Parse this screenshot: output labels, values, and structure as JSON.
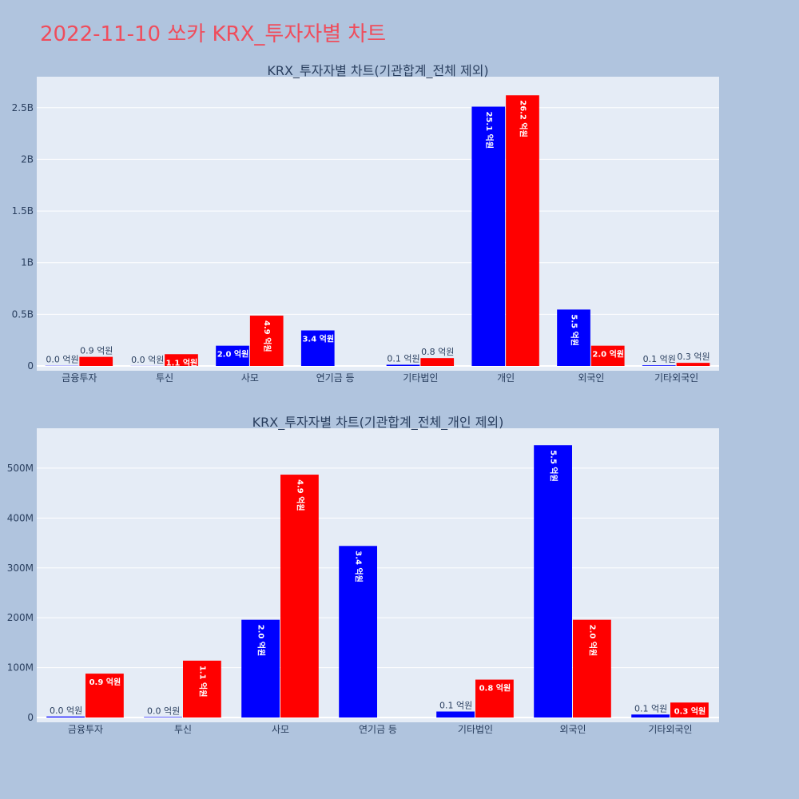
{
  "page": {
    "title": "2022-11-10 쏘카 KRX_투자자별 차트"
  },
  "colors": {
    "buy": "#0000ff",
    "sell": "#ff0000",
    "plot_bg": "#e5ecf6",
    "page_bg": "#b0c4de",
    "title": "#ef4d5c"
  },
  "chart_data": [
    {
      "type": "bar",
      "title": "KRX_투자자별 차트(기관합계_전체 제외)",
      "categories": [
        "금융투자",
        "투신",
        "사모",
        "연기금 등",
        "기타법인",
        "개인",
        "외국인",
        "기타외국인"
      ],
      "series": [
        {
          "values": [
            2000000,
            1000000,
            196000000,
            344000000,
            12000000,
            2510000000,
            546000000,
            6000000
          ],
          "labels": [
            "0.0 억원",
            "0.0 억원",
            "2.0 억원",
            "3.4 억원",
            "0.1 억원",
            "25.1 억원",
            "5.5 억원",
            "0.1 억원"
          ]
        },
        {
          "values": [
            88000000,
            114000000,
            487000000,
            0,
            76000000,
            2620000000,
            196000000,
            30000000
          ],
          "labels": [
            "0.9 억원",
            "1.1 억원",
            "4.9 억원",
            "",
            "0.8 억원",
            "26.2 억원",
            "2.0 억원",
            "0.3 억원"
          ]
        }
      ],
      "ylim": [
        0,
        2800000000
      ],
      "yticks": [
        0,
        500000000,
        1000000000,
        1500000000,
        2000000000,
        2500000000
      ],
      "ytick_labels": [
        "0",
        "0.5B",
        "1B",
        "1.5B",
        "2B",
        "2.5B"
      ],
      "grid": true
    },
    {
      "type": "bar",
      "title": "KRX_투자자별 차트(기관합계_전체_개인 제외)",
      "categories": [
        "금융투자",
        "투신",
        "사모",
        "연기금 등",
        "기타법인",
        "외국인",
        "기타외국인"
      ],
      "series": [
        {
          "values": [
            2000000,
            1000000,
            196000000,
            344000000,
            12000000,
            546000000,
            6000000
          ],
          "labels": [
            "0.0 억원",
            "0.0 억원",
            "2.0 억원",
            "3.4 억원",
            "0.1 억원",
            "5.5 억원",
            "0.1 억원"
          ]
        },
        {
          "values": [
            88000000,
            114000000,
            487000000,
            0,
            76000000,
            196000000,
            30000000
          ],
          "labels": [
            "0.9 억원",
            "1.1 억원",
            "4.9 억원",
            "",
            "0.8 억원",
            "2.0 억원",
            "0.3 억원"
          ]
        }
      ],
      "ylim": [
        0,
        580000000
      ],
      "yticks": [
        0,
        100000000,
        200000000,
        300000000,
        400000000,
        500000000
      ],
      "ytick_labels": [
        "0",
        "100M",
        "200M",
        "300M",
        "400M",
        "500M"
      ],
      "grid": true
    }
  ]
}
